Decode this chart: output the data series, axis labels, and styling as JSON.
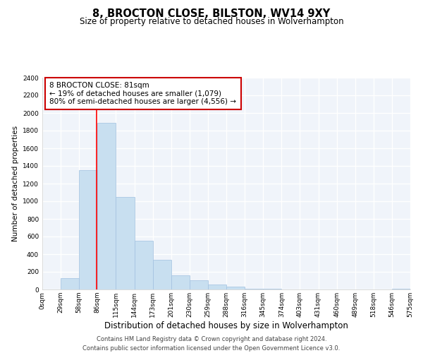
{
  "title": "8, BROCTON CLOSE, BILSTON, WV14 9XY",
  "subtitle": "Size of property relative to detached houses in Wolverhampton",
  "xlabel": "Distribution of detached houses by size in Wolverhampton",
  "ylabel": "Number of detached properties",
  "bar_color": "#c8dff0",
  "bar_edge_color": "#a0c0e0",
  "bg_color": "#f0f4fa",
  "grid_color": "#ffffff",
  "bin_labels": [
    "0sqm",
    "29sqm",
    "58sqm",
    "86sqm",
    "115sqm",
    "144sqm",
    "173sqm",
    "201sqm",
    "230sqm",
    "259sqm",
    "288sqm",
    "316sqm",
    "345sqm",
    "374sqm",
    "403sqm",
    "431sqm",
    "460sqm",
    "489sqm",
    "518sqm",
    "546sqm",
    "575sqm"
  ],
  "bar_values": [
    0,
    125,
    1350,
    1890,
    1050,
    550,
    340,
    160,
    105,
    60,
    30,
    10,
    5,
    0,
    0,
    0,
    0,
    0,
    0,
    5,
    0
  ],
  "ylim": [
    0,
    2400
  ],
  "yticks": [
    0,
    200,
    400,
    600,
    800,
    1000,
    1200,
    1400,
    1600,
    1800,
    2000,
    2200,
    2400
  ],
  "property_line_x": 86,
  "annotation_title": "8 BROCTON CLOSE: 81sqm",
  "annotation_line1": "← 19% of detached houses are smaller (1,079)",
  "annotation_line2": "80% of semi-detached houses are larger (4,556) →",
  "annotation_box_color": "#ffffff",
  "annotation_box_edge": "#cc0000",
  "footer_line1": "Contains HM Land Registry data © Crown copyright and database right 2024.",
  "footer_line2": "Contains public sector information licensed under the Open Government Licence v3.0.",
  "title_fontsize": 10.5,
  "subtitle_fontsize": 8.5,
  "xlabel_fontsize": 8.5,
  "ylabel_fontsize": 7.5,
  "tick_fontsize": 6.5,
  "annotation_fontsize": 7.5,
  "footer_fontsize": 6.0
}
